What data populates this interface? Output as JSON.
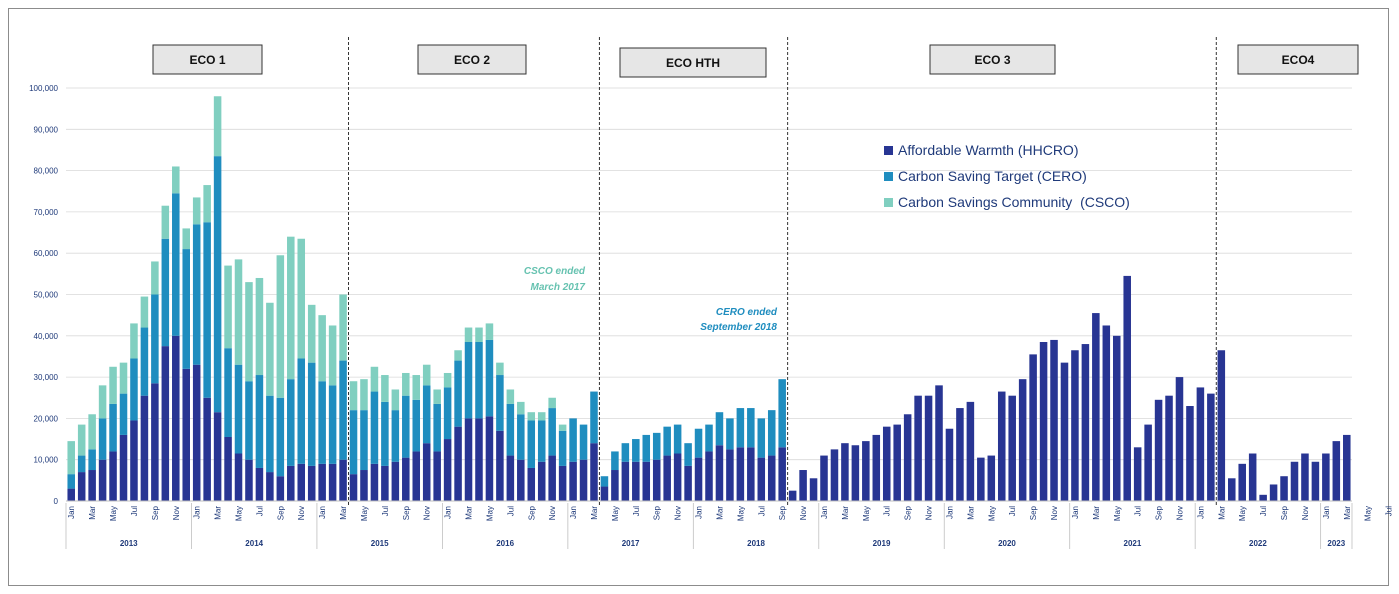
{
  "chart_data": {
    "type": "bar",
    "stacked": true,
    "title": "",
    "xlabel": "",
    "ylabel": "",
    "ylim": [
      0,
      100000
    ],
    "yticks": [
      "0",
      "10,000",
      "20,000",
      "30,000",
      "40,000",
      "50,000",
      "60,000",
      "70,000",
      "80,000",
      "90,000",
      "100,000"
    ],
    "grid": true,
    "legend_position": "top-right",
    "colors": {
      "hhcro": "#283593",
      "cero": "#1f8dbf",
      "csco": "#80cfc0",
      "annot_csco": "#66c2b0",
      "annot_cero": "#1f8dbf"
    },
    "series": [
      {
        "name": "Affordable Warmth (HHCRO)",
        "key": "hhcro"
      },
      {
        "name": "Carbon Saving Target (CERO)",
        "key": "cero"
      },
      {
        "name": "Carbon Savings Community  (CSCO)",
        "key": "csco"
      }
    ],
    "month_labels": [
      "Jan",
      "",
      "Mar",
      "",
      "May",
      "",
      "Jul",
      "",
      "Sep",
      "",
      "Nov",
      "",
      "Jan",
      "",
      "Mar",
      "",
      "May",
      "",
      "Jul",
      "",
      "Sep",
      "",
      "Nov",
      "",
      "Jan",
      "",
      "Mar",
      "",
      "May",
      "",
      "Jul",
      "",
      "Sep",
      "",
      "Nov",
      "",
      "Jan",
      "",
      "Mar",
      "",
      "May",
      "",
      "Jul",
      "",
      "Sep",
      "",
      "Nov",
      "",
      "Jan",
      "",
      "Mar",
      "",
      "May",
      "",
      "Jul",
      "",
      "Sep",
      "",
      "Nov",
      "",
      "Jan",
      "",
      "Mar",
      "",
      "May",
      "",
      "Jul",
      "",
      "Sep",
      "",
      "Nov",
      "",
      "Jan",
      "",
      "Mar",
      "",
      "May",
      "",
      "Jul",
      "",
      "Sep",
      "",
      "Nov",
      "",
      "Jan",
      "",
      "Mar",
      "",
      "May",
      "",
      "Jul",
      "",
      "Sep",
      "",
      "Nov",
      "",
      "Jan",
      "",
      "Mar",
      "",
      "May",
      "",
      "Jul",
      "",
      "Sep",
      "",
      "Nov",
      "",
      "Jan",
      "",
      "Mar",
      "",
      "May",
      "",
      "Jul",
      "",
      "Sep",
      "",
      "Nov",
      "",
      "Jan",
      "",
      "Mar",
      "",
      "May",
      "",
      "Jul",
      "",
      "Sep",
      "",
      "Nov",
      "",
      "Jan",
      "",
      "Mar"
    ],
    "years": [
      {
        "label": "2013",
        "start": 0,
        "end": 11
      },
      {
        "label": "2014",
        "start": 12,
        "end": 23
      },
      {
        "label": "2015",
        "start": 24,
        "end": 35
      },
      {
        "label": "2016",
        "start": 36,
        "end": 47
      },
      {
        "label": "2017",
        "start": 48,
        "end": 59
      },
      {
        "label": "2018",
        "start": 60,
        "end": 71
      },
      {
        "label": "2019",
        "start": 72,
        "end": 83
      },
      {
        "label": "2020",
        "start": 84,
        "end": 95
      },
      {
        "label": "2021",
        "start": 96,
        "end": 107
      },
      {
        "label": "2022",
        "start": 108,
        "end": 119
      },
      {
        "label": "2023",
        "start": 120,
        "end": 122
      }
    ],
    "hhcro": [
      3000,
      7000,
      7500,
      10000,
      12000,
      16000,
      19500,
      25500,
      28500,
      37500,
      40000,
      32000,
      33000,
      25000,
      21500,
      15500,
      11500,
      10000,
      8000,
      7000,
      6000,
      8500,
      9000,
      8500,
      9000,
      9000,
      10000,
      6500,
      7500,
      9000,
      8500,
      9500,
      10500,
      12000,
      14000,
      12000,
      15000,
      18000,
      20000,
      20000,
      20500,
      17000,
      11000,
      10000,
      8000,
      9500,
      11000,
      8500,
      9500,
      10000,
      14000,
      3500,
      7500,
      9500,
      9500,
      9500,
      10000,
      11000,
      11500,
      8500,
      10500,
      12000,
      13500,
      12500,
      13000,
      13000,
      10500,
      11000,
      13000,
      2500,
      7500,
      5500,
      11000,
      12500,
      14000,
      13500,
      14500,
      16000,
      18000,
      18500,
      21000,
      25500,
      25500,
      28000,
      17500,
      22500,
      24000,
      10500,
      11000,
      26500,
      25500,
      29500,
      35500,
      38500,
      39000,
      33500,
      36500,
      38000,
      45500,
      42500,
      40000,
      54500,
      13000,
      18500,
      24500,
      25500,
      30000,
      23000,
      27500,
      26000,
      36500,
      5500,
      9000,
      11500,
      1500,
      4000,
      6000,
      9500,
      11500,
      9500,
      11500,
      14500,
      16000
    ],
    "cero": [
      3500,
      4000,
      5000,
      10000,
      11500,
      10000,
      15000,
      16500,
      21500,
      26000,
      34500,
      29000,
      34000,
      42500,
      62000,
      21500,
      21500,
      19000,
      22500,
      18500,
      19000,
      21000,
      25500,
      25000,
      20000,
      19000,
      24000,
      15500,
      14500,
      17500,
      15500,
      12500,
      15000,
      12500,
      14000,
      11500,
      12500,
      16000,
      18500,
      18500,
      18500,
      13500,
      12500,
      11000,
      11500,
      10000,
      11500,
      8500,
      10500,
      8500,
      12500,
      2500,
      4500,
      4500,
      5500,
      6500,
      6500,
      7000,
      7000,
      5500,
      7000,
      6500,
      8000,
      7500,
      9500,
      9500,
      9500,
      11000,
      16500,
      0,
      0,
      0,
      0,
      0,
      0,
      0,
      0,
      0,
      0,
      0,
      0,
      0,
      0,
      0,
      0,
      0,
      0,
      0,
      0,
      0,
      0,
      0,
      0,
      0,
      0,
      0,
      0,
      0,
      0,
      0,
      0,
      0,
      0,
      0,
      0,
      0,
      0,
      0,
      0,
      0,
      0,
      0,
      0,
      0,
      0,
      0,
      0,
      0,
      0,
      0,
      0,
      0,
      0
    ],
    "csco": [
      8000,
      7500,
      8500,
      8000,
      9000,
      7500,
      8500,
      7500,
      8000,
      8000,
      6500,
      5000,
      6500,
      9000,
      14500,
      20000,
      25500,
      24000,
      23500,
      22500,
      34500,
      34500,
      29000,
      14000,
      16000,
      14500,
      16000,
      7000,
      7500,
      6000,
      6500,
      5000,
      5500,
      6000,
      5000,
      3500,
      3500,
      2500,
      3500,
      3500,
      4000,
      3000,
      3500,
      3000,
      2000,
      2000,
      2500,
      1500,
      0,
      0,
      0,
      0,
      0,
      0,
      0,
      0,
      0,
      0,
      0,
      0,
      0,
      0,
      0,
      0,
      0,
      0,
      0,
      0,
      0,
      0,
      0,
      0,
      0,
      0,
      0,
      0,
      0,
      0,
      0,
      0,
      0,
      0,
      0,
      0,
      0,
      0,
      0,
      0,
      0,
      0,
      0,
      0,
      0,
      0,
      0,
      0,
      0,
      0,
      0,
      0,
      0,
      0,
      0,
      0,
      0,
      0,
      0,
      0,
      0,
      0,
      0,
      0,
      0,
      0,
      0,
      0,
      0,
      0,
      0,
      0,
      0
    ],
    "phases": [
      {
        "label": "ECO 1"
      },
      {
        "label": "ECO 2"
      },
      {
        "label": "ECO HTH"
      },
      {
        "label": "ECO 3"
      },
      {
        "label": "ECO4"
      }
    ],
    "annotations": [
      {
        "line1": "CSCO ended",
        "line2": "March 2017"
      },
      {
        "line1": "CERO ended",
        "line2": "September 2018"
      }
    ]
  }
}
